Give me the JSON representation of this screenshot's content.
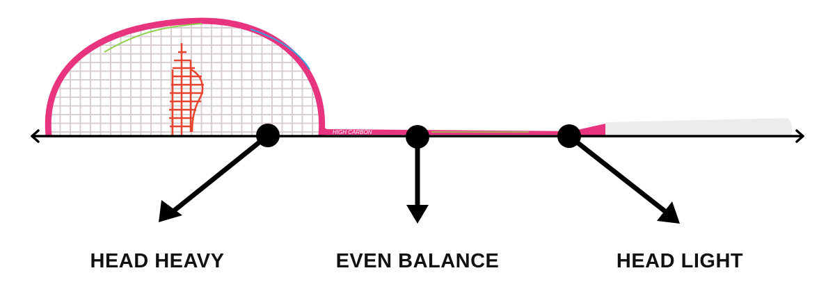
{
  "labels": {
    "head_heavy": "HEAD HEAVY",
    "even_balance": "EVEN BALANCE",
    "head_light": "HEAD LIGHT"
  },
  "racket": {
    "shaft_text": "HIGH CARBON",
    "frame_color": "#e8337e",
    "string_color": "#d9cfd2",
    "logo_color": "#e8432f",
    "grip_color": "#ececec"
  },
  "colors": {
    "axis": "#000000"
  }
}
